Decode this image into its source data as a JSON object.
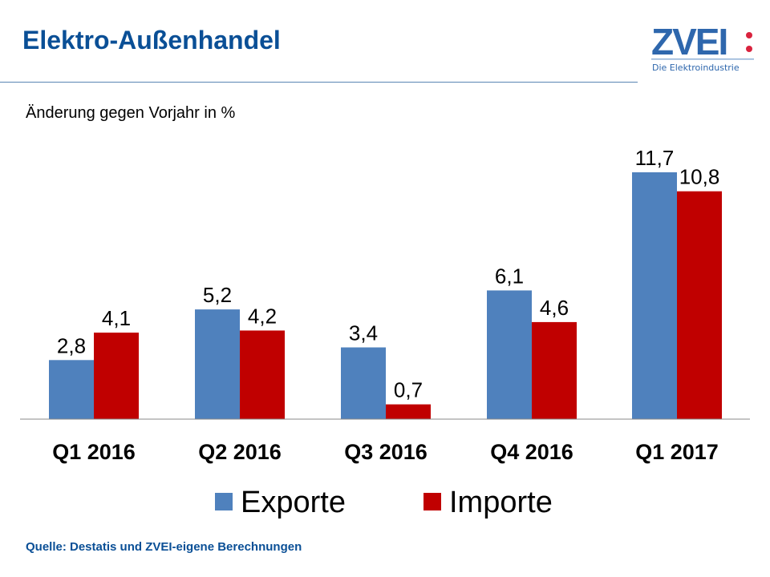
{
  "header": {
    "title": "Elektro-Außenhandel",
    "logo_text": "ZVEI:",
    "logo_tagline": "Die Elektroindustrie"
  },
  "source": "Quelle: Destatis und ZVEI-eigene Berechnungen",
  "colors": {
    "title": "#0a4f96",
    "exporte": "#4f81bd",
    "importe": "#c00000"
  },
  "chart_data": {
    "type": "bar",
    "title": "",
    "subtitle": "Änderung gegen Vorjahr in %",
    "categories": [
      "Q1 2016",
      "Q2 2016",
      "Q3 2016",
      "Q4 2016",
      "Q1 2017"
    ],
    "series": [
      {
        "name": "Exporte",
        "values": [
          2.8,
          5.2,
          3.4,
          6.1,
          11.7
        ],
        "labels": [
          "2,8",
          "5,2",
          "3,4",
          "6,1",
          "11,7"
        ],
        "color": "#4f81bd"
      },
      {
        "name": "Importe",
        "values": [
          4.1,
          4.2,
          0.7,
          4.6,
          10.8
        ],
        "labels": [
          "4,1",
          "4,2",
          "0,7",
          "4,6",
          "10,8"
        ],
        "color": "#c00000"
      }
    ],
    "ylim": [
      0,
      12
    ],
    "grid": false,
    "legend_position": "bottom"
  }
}
